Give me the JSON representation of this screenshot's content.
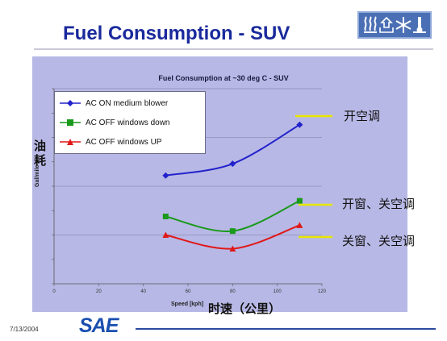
{
  "slide": {
    "title": "Fuel Consumption - SUV",
    "date": "7/13/2004",
    "brand": "SAE"
  },
  "header_icons": [
    "heat-waves-icon",
    "recycle-air-icon",
    "snowflake-icon",
    "cold-water-icon"
  ],
  "colors": {
    "panel": "#b8b8e6",
    "series_ac_on": "#2222cc",
    "series_ac_off_down": "#1a9a1a",
    "series_ac_off_up": "#e01818",
    "annotation_line": "#e6e600"
  },
  "chinese_labels": {
    "y_axis": "油耗",
    "x_axis": "时速（公里）",
    "ac_on": "开空调",
    "ac_off_windows_down": "开窗、关空调",
    "ac_off_windows_up": "关窗、关空调"
  },
  "chart_data": {
    "type": "line",
    "title": "Fuel Consumption at ~30 deg C - SUV",
    "xlabel": "Speed [kph]",
    "ylabel": "Gal/mile",
    "xlim": [
      0,
      120
    ],
    "x_ticks": [
      0,
      20,
      40,
      60,
      80,
      100,
      120
    ],
    "y_tick_labels_visible": false,
    "grid": "horizontal",
    "legend": "top-left",
    "series": [
      {
        "name": "AC ON medium blower",
        "marker": "diamond",
        "x": [
          50,
          80,
          110
        ],
        "y": [
          0.555,
          0.615,
          0.815
        ]
      },
      {
        "name": "AC OFF windows down",
        "marker": "square",
        "x": [
          50,
          80,
          110
        ],
        "y": [
          0.345,
          0.27,
          0.425
        ]
      },
      {
        "name": "AC OFF windows UP",
        "marker": "triangle",
        "x": [
          50,
          80,
          110
        ],
        "y": [
          0.25,
          0.18,
          0.3
        ]
      }
    ],
    "ylim": [
      0,
      1.0
    ]
  }
}
